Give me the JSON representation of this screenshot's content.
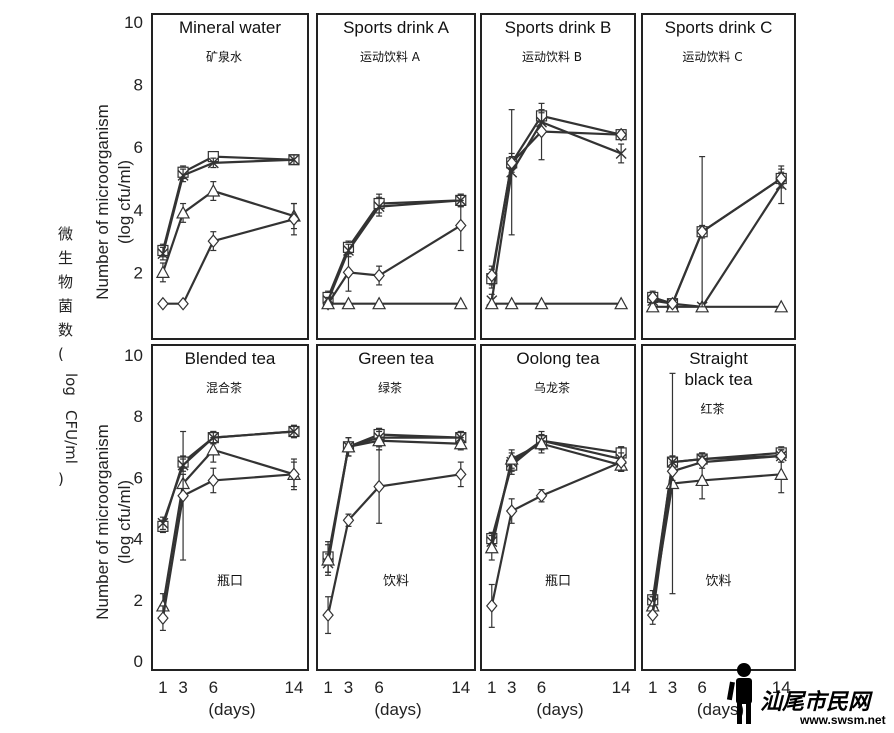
{
  "chart_data": {
    "type": "line",
    "y_axis_label_line1": "Number of microorganism",
    "y_axis_label_line2": "(log cfu/ml)",
    "x_axis_label": "(days)",
    "x_ticks": [
      1,
      3,
      6,
      14
    ],
    "y_ticks": [
      0,
      2,
      4,
      6,
      8,
      10
    ],
    "ylim": [
      0,
      10
    ],
    "side_label_chars": [
      "微",
      "生",
      "物",
      "菌",
      "数",
      "(",
      "log",
      "CFU/ml",
      ")"
    ],
    "series_markers": [
      "square",
      "x",
      "triangle",
      "diamond"
    ],
    "panels": [
      {
        "title": "Mineral water",
        "subtitle": "矿泉水",
        "note": "",
        "series": [
          {
            "marker": "square",
            "values": [
              2.7,
              5.2,
              5.7,
              5.6
            ],
            "err": [
              0.2,
              0.2,
              0.15,
              0.15
            ]
          },
          {
            "marker": "x",
            "values": [
              2.6,
              5.1,
              5.5,
              5.6
            ],
            "err": [
              0.2,
              0.2,
              0.15,
              0.15
            ]
          },
          {
            "marker": "triangle",
            "values": [
              2.0,
              3.9,
              4.6,
              3.8
            ],
            "err": [
              0.3,
              0.3,
              0.3,
              0.4
            ]
          },
          {
            "marker": "diamond",
            "values": [
              1.0,
              1.0,
              3.0,
              3.7
            ],
            "err": [
              0,
              0,
              0.3,
              0.5
            ]
          }
        ]
      },
      {
        "title": "Sports drink A",
        "subtitle": "运动饮料 A",
        "note": "",
        "series": [
          {
            "marker": "square",
            "values": [
              1.2,
              2.8,
              4.2,
              4.3
            ],
            "err": [
              0.2,
              0.2,
              0.3,
              0.2
            ]
          },
          {
            "marker": "x",
            "values": [
              1.1,
              2.7,
              4.1,
              4.3
            ],
            "err": [
              0.1,
              0.2,
              0.3,
              0.2
            ]
          },
          {
            "marker": "diamond",
            "values": [
              1.0,
              2.0,
              1.9,
              3.5
            ],
            "err": [
              0,
              0.6,
              0.3,
              0.8
            ]
          },
          {
            "marker": "triangle",
            "values": [
              1.0,
              1.0,
              1.0,
              1.0
            ],
            "err": [
              0,
              0,
              0,
              0
            ]
          }
        ]
      },
      {
        "title": "Sports drink B",
        "subtitle": "运动饮料 B",
        "note": "",
        "series": [
          {
            "marker": "square",
            "values": [
              1.8,
              5.5,
              7.0,
              6.4
            ],
            "err": [
              0.3,
              0.2,
              0.2,
              0.1
            ]
          },
          {
            "marker": "x",
            "values": [
              1.1,
              5.2,
              6.8,
              5.8
            ],
            "err": [
              0.2,
              2.0,
              0.3,
              0.3
            ]
          },
          {
            "marker": "diamond",
            "values": [
              1.9,
              5.5,
              6.5,
              6.4
            ],
            "err": [
              0.3,
              0.3,
              0.9,
              0.1
            ]
          },
          {
            "marker": "triangle",
            "values": [
              1.0,
              1.0,
              1.0,
              1.0
            ],
            "err": [
              0,
              0,
              0,
              0
            ]
          }
        ]
      },
      {
        "title": "Sports drink C",
        "subtitle": "运动饮料 C",
        "note": "",
        "series": [
          {
            "marker": "square",
            "values": [
              1.2,
              1.0,
              3.3,
              5.0
            ],
            "err": [
              0.2,
              0.1,
              0.2,
              0.2
            ]
          },
          {
            "marker": "x",
            "values": [
              1.1,
              1.0,
              0.9,
              4.8
            ],
            "err": [
              0.2,
              0.1,
              0.1,
              0.6
            ]
          },
          {
            "marker": "triangle",
            "values": [
              0.9,
              0.9,
              0.9,
              0.9
            ],
            "err": [
              0,
              0,
              0,
              0
            ]
          },
          {
            "marker": "diamond",
            "values": [
              1.2,
              1.0,
              3.3,
              5.0
            ],
            "err": [
              0.1,
              0.1,
              2.4,
              0.3
            ]
          }
        ]
      },
      {
        "title": "Blended tea",
        "subtitle": "混合茶",
        "note": "瓶口",
        "series": [
          {
            "marker": "square",
            "values": [
              4.4,
              6.5,
              7.3,
              7.5
            ],
            "err": [
              0.2,
              0.2,
              0.2,
              0.2
            ]
          },
          {
            "marker": "x",
            "values": [
              4.5,
              6.4,
              7.3,
              7.5
            ],
            "err": [
              0.2,
              0.2,
              0.2,
              0.2
            ]
          },
          {
            "marker": "triangle",
            "values": [
              1.8,
              5.8,
              6.9,
              6.1
            ],
            "err": [
              0.4,
              0.3,
              0.4,
              0.4
            ]
          },
          {
            "marker": "diamond",
            "values": [
              1.4,
              5.4,
              5.9,
              6.1
            ],
            "err": [
              0.4,
              2.1,
              0.4,
              0.5
            ]
          }
        ]
      },
      {
        "title": "Green tea",
        "subtitle": "绿茶",
        "note": "饮料",
        "series": [
          {
            "marker": "square",
            "values": [
              3.4,
              7.0,
              7.4,
              7.3
            ],
            "err": [
              0.5,
              0.3,
              0.2,
              0.2
            ]
          },
          {
            "marker": "x",
            "values": [
              3.2,
              7.0,
              7.3,
              7.3
            ],
            "err": [
              0.3,
              0.3,
              0.3,
              0.2
            ]
          },
          {
            "marker": "triangle",
            "values": [
              3.3,
              7.0,
              7.2,
              7.1
            ],
            "err": [
              0.5,
              0.3,
              0.3,
              0.2
            ]
          },
          {
            "marker": "diamond",
            "values": [
              1.5,
              4.6,
              5.7,
              6.1
            ],
            "err": [
              0.6,
              0.2,
              1.2,
              0.4
            ]
          }
        ]
      },
      {
        "title": "Oolong tea",
        "subtitle": "乌龙茶",
        "note": "瓶口",
        "series": [
          {
            "marker": "square",
            "values": [
              4.0,
              6.4,
              7.2,
              6.8
            ],
            "err": [
              0.2,
              0.3,
              0.2,
              0.2
            ]
          },
          {
            "marker": "x",
            "values": [
              3.9,
              6.5,
              7.2,
              6.6
            ],
            "err": [
              0.3,
              0.3,
              0.3,
              0.4
            ]
          },
          {
            "marker": "triangle",
            "values": [
              3.7,
              6.6,
              7.1,
              6.4
            ],
            "err": [
              0.4,
              0.3,
              0.3,
              0.2
            ]
          },
          {
            "marker": "diamond",
            "values": [
              1.8,
              4.9,
              5.4,
              6.5
            ],
            "err": [
              0.7,
              0.4,
              0.2,
              0.3
            ]
          }
        ]
      },
      {
        "title": "Straight\nblack tea",
        "subtitle": "红茶",
        "note": "饮料",
        "series": [
          {
            "marker": "square",
            "values": [
              2.0,
              6.5,
              6.6,
              6.8
            ],
            "err": [
              0.3,
              0.2,
              0.2,
              0.2
            ]
          },
          {
            "marker": "x",
            "values": [
              1.9,
              6.5,
              6.6,
              6.7
            ],
            "err": [
              0.2,
              0.2,
              0.2,
              0.2
            ]
          },
          {
            "marker": "triangle",
            "values": [
              1.8,
              5.8,
              5.9,
              6.1
            ],
            "err": [
              0.3,
              3.6,
              0.6,
              0.6
            ]
          },
          {
            "marker": "diamond",
            "values": [
              1.5,
              6.2,
              6.5,
              6.7
            ],
            "err": [
              0.3,
              0.3,
              0.2,
              0.2
            ]
          }
        ]
      }
    ]
  },
  "watermark": {
    "text": "汕尾市民网",
    "url": "www.swsm.net"
  }
}
